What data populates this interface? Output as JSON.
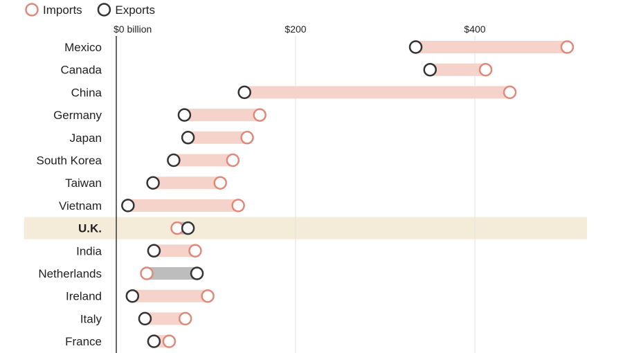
{
  "chart_data": {
    "type": "dumbbell",
    "legend": [
      {
        "name": "Imports",
        "color": "#e0887a"
      },
      {
        "name": "Exports",
        "color": "#333333"
      }
    ],
    "x_ticks": [
      {
        "value": 0,
        "label": "$0 billion"
      },
      {
        "value": 200,
        "label": "$200"
      },
      {
        "value": 400,
        "label": "$400"
      }
    ],
    "xlim": [
      0,
      520
    ],
    "highlight": "U.K.",
    "categories": [
      "Mexico",
      "Canada",
      "China",
      "Germany",
      "Japan",
      "South Korea",
      "Taiwan",
      "Vietnam",
      "U.K.",
      "India",
      "Netherlands",
      "Ireland",
      "Italy",
      "France"
    ],
    "imports": [
      503,
      412,
      439,
      160,
      146,
      130,
      116,
      136,
      68,
      88,
      34,
      102,
      77,
      59
    ],
    "exports": [
      334,
      350,
      143,
      76,
      80,
      64,
      41,
      13,
      80,
      42,
      90,
      18,
      32,
      42
    ],
    "colors": {
      "import_circle": "#e0887a",
      "export_circle": "#333333",
      "bar_fill": "#f5d3cb",
      "surplus_fill": "#bdbdbd",
      "highlight_band": "#f4ecd8",
      "gridline": "#e2e2e2",
      "axis_line": "#333333"
    }
  }
}
